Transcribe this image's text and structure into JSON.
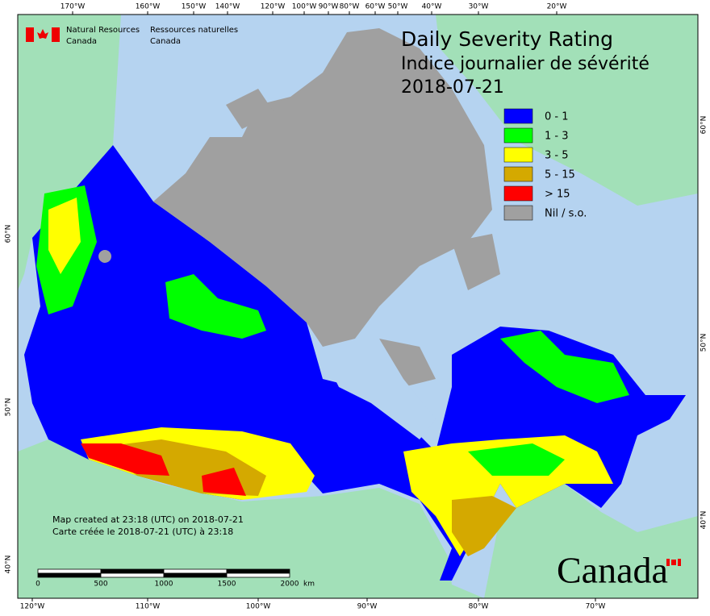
{
  "agency": {
    "en": [
      "Natural Resources",
      "Canada"
    ],
    "fr": [
      "Ressources naturelles",
      "Canada"
    ]
  },
  "title": {
    "en": "Daily Severity Rating",
    "fr": "Indice journalier de sévérité",
    "date": "2018-07-21"
  },
  "legend": [
    {
      "label": "0 - 1",
      "color": "#0000ff"
    },
    {
      "label": "1 - 3",
      "color": "#00ff00"
    },
    {
      "label": "3 - 5",
      "color": "#ffff00"
    },
    {
      "label": "5 - 15",
      "color": "#d4a900"
    },
    {
      "label": "> 15",
      "color": "#ff0000"
    },
    {
      "label": "Nil / s.o.",
      "color": "#a0a0a0"
    }
  ],
  "graticule": {
    "top": [
      "170°W",
      "160°W",
      "150°W",
      "140°W",
      "120°W",
      "100°W",
      "90°W",
      "80°W",
      "60°W",
      "50°W",
      "40°W",
      "30°W",
      "20°W"
    ],
    "bottom": [
      "120°W",
      "110°W",
      "100°W",
      "90°W",
      "80°W",
      "70°W"
    ],
    "left": [
      "60°N",
      "50°N",
      "40°N"
    ],
    "right": [
      "60°N",
      "50°N",
      "40°N"
    ]
  },
  "notes": [
    "Map created at 23:18 (UTC) on 2018-07-21",
    "Carte créée le 2018-07-21 (UTC) à 23:18"
  ],
  "scale_bar": {
    "labels": [
      "0",
      "500",
      "1000",
      "1500",
      "2000"
    ],
    "unit": "km"
  },
  "wordmark": "Canada"
}
